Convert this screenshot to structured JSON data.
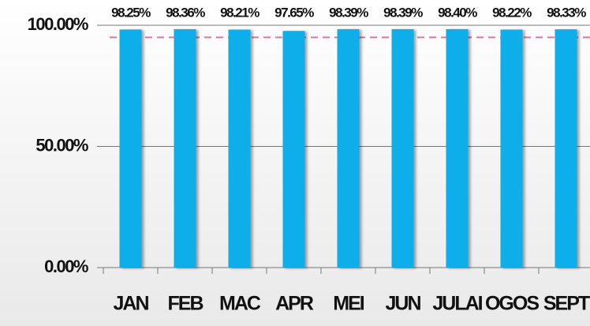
{
  "chart_data": {
    "type": "bar",
    "categories": [
      "JAN",
      "FEB",
      "MAC",
      "APR",
      "MEI",
      "JUN",
      "JULAI",
      "OGOS",
      "SEPT"
    ],
    "values": [
      98.25,
      98.36,
      98.21,
      97.65,
      98.39,
      98.39,
      98.4,
      98.22,
      98.33
    ],
    "value_labels": [
      "98.25%",
      "98.36%",
      "98.21%",
      "97.65%",
      "98.39%",
      "98.39%",
      "98.40%",
      "98.22%",
      "98.33%"
    ],
    "color": "#0aaeea",
    "target": 95,
    "target_color": "#f06ba8",
    "ylim": [
      0,
      100
    ],
    "yticks": [
      {
        "value": 0,
        "label": "0.00%"
      },
      {
        "value": 50,
        "label": "50.00%"
      },
      {
        "value": 100,
        "label": "100.00%"
      }
    ],
    "grid": true
  }
}
